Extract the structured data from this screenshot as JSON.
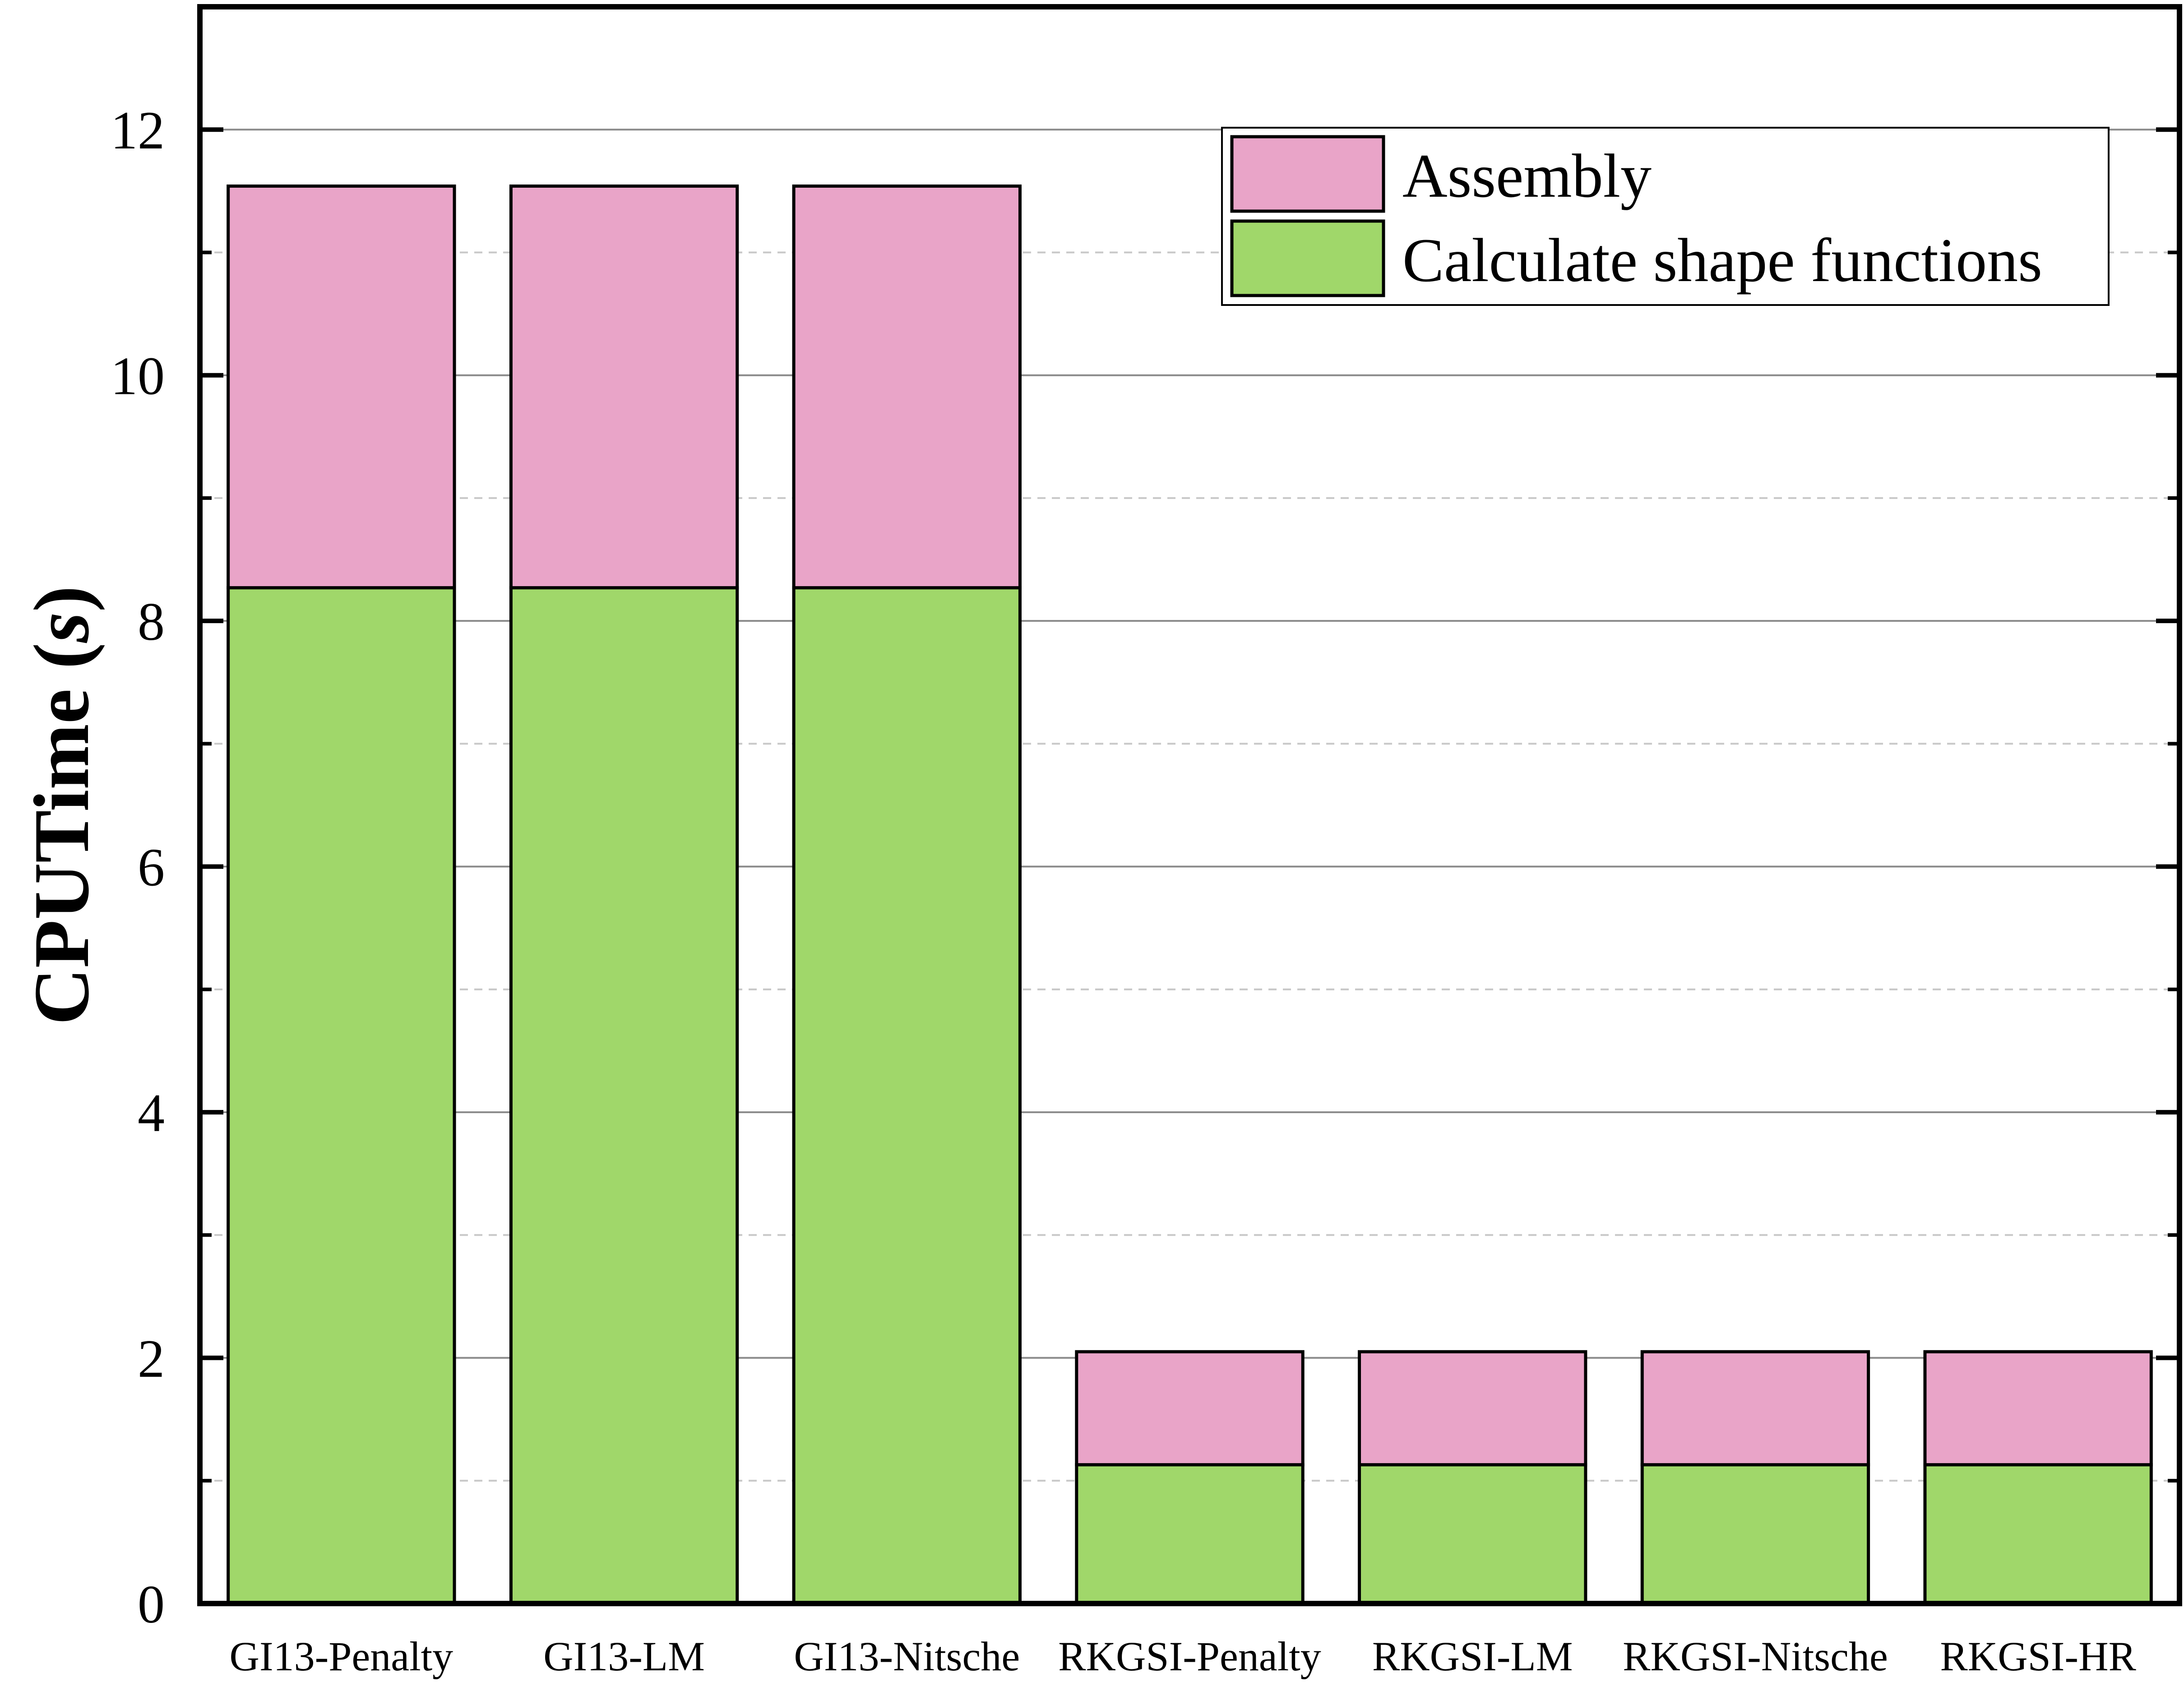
{
  "chart_data": {
    "type": "bar",
    "stacked": true,
    "categories": [
      "GI13-Penalty",
      "GI13-LM",
      "GI13-Nitsche",
      "RKGSI-Penalty",
      "RKGSI-LM",
      "RKGSI-Nitsche",
      "RKGSI-HR"
    ],
    "series": [
      {
        "name": "Calculate shape functions",
        "color": "#a0d76a",
        "values": [
          8.27,
          8.27,
          8.27,
          1.13,
          1.13,
          1.13,
          1.13
        ]
      },
      {
        "name": "Assembly",
        "color": "#e9a4c8",
        "values": [
          3.27,
          3.27,
          3.27,
          0.92,
          0.92,
          0.92,
          0.92
        ]
      }
    ],
    "ylabel": {
      "main": "CPUTime (",
      "unit": "s",
      "close": ")"
    },
    "ylim": [
      0,
      13
    ],
    "yticks": [
      0,
      2,
      4,
      6,
      8,
      10,
      12
    ],
    "grid": {
      "major": true,
      "minor": true
    },
    "legend": {
      "position": "top-right",
      "entries": [
        "Assembly",
        "Calculate shape functions"
      ]
    }
  }
}
